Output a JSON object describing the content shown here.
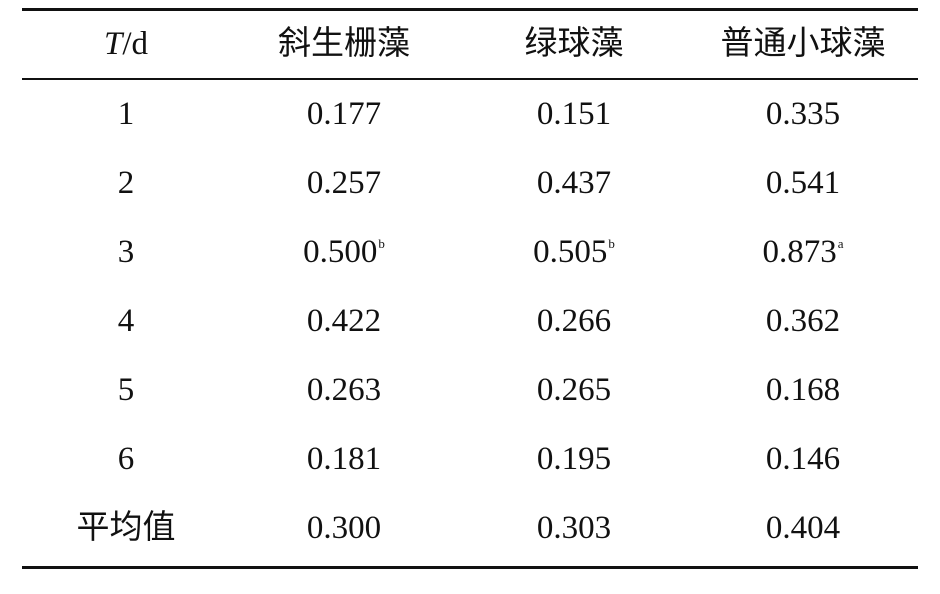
{
  "table": {
    "header": [
      {
        "italic": "T",
        "rest": "/d"
      },
      "斜生栅藻",
      "绿球藻",
      "普通小球藻"
    ],
    "rows": [
      [
        "1",
        {
          "text": "0.177"
        },
        {
          "text": "0.151"
        },
        {
          "text": "0.335"
        }
      ],
      [
        "2",
        {
          "text": "0.257"
        },
        {
          "text": "0.437"
        },
        {
          "text": "0.541"
        }
      ],
      [
        "3",
        {
          "text": "0.500",
          "sup": "b"
        },
        {
          "text": "0.505",
          "sup": "b"
        },
        {
          "text": "0.873",
          "sup": "a"
        }
      ],
      [
        "4",
        {
          "text": "0.422"
        },
        {
          "text": "0.266"
        },
        {
          "text": "0.362"
        }
      ],
      [
        "5",
        {
          "text": "0.263"
        },
        {
          "text": "0.265"
        },
        {
          "text": "0.168"
        }
      ],
      [
        "6",
        {
          "text": "0.181"
        },
        {
          "text": "0.195"
        },
        {
          "text": "0.146"
        }
      ],
      [
        "平均值",
        {
          "text": "0.300"
        },
        {
          "text": "0.303"
        },
        {
          "text": "0.404"
        }
      ]
    ]
  }
}
